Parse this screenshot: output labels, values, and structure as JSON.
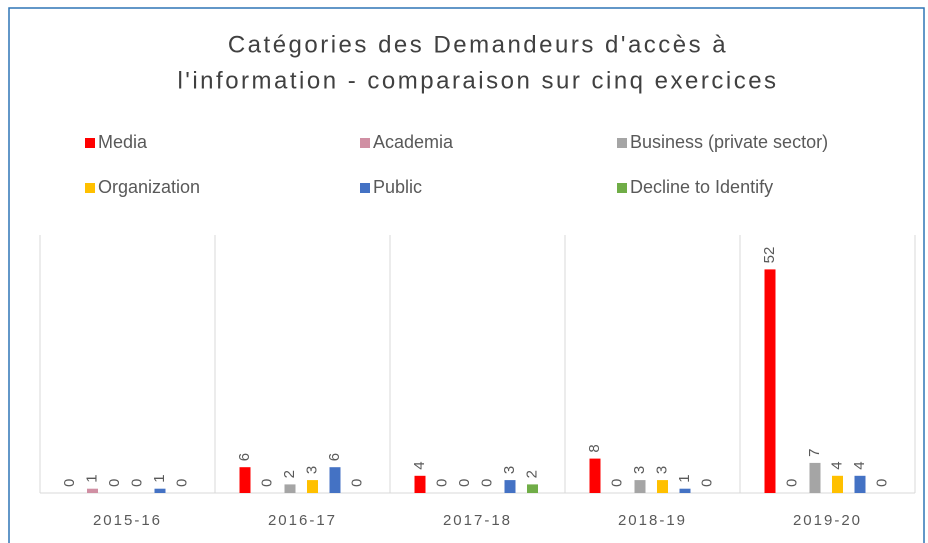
{
  "chart_data": {
    "type": "bar",
    "title": [
      "Catégories des Demandeurs d'accès à",
      "l'information - comparaison sur cinq exercices"
    ],
    "categories": [
      "2015-16",
      "2016-17",
      "2017-18",
      "2018-19",
      "2019-20"
    ],
    "series": [
      {
        "name": "Media",
        "color": "#ff0000",
        "values": [
          0,
          6,
          4,
          8,
          52
        ]
      },
      {
        "name": "Academia",
        "color": "#d08fa3",
        "values": [
          1,
          0,
          0,
          0,
          0
        ]
      },
      {
        "name": "Business (private sector)",
        "color": "#a5a5a5",
        "values": [
          0,
          2,
          0,
          3,
          7
        ]
      },
      {
        "name": "Organization",
        "color": "#ffc000",
        "values": [
          0,
          3,
          0,
          3,
          4
        ]
      },
      {
        "name": "Public",
        "color": "#4472c4",
        "values": [
          1,
          6,
          3,
          1,
          4
        ]
      },
      {
        "name": "Decline to Identify",
        "color": "#70ad47",
        "values": [
          0,
          0,
          2,
          0,
          0
        ]
      }
    ],
    "ylim": [
      0,
      60
    ]
  }
}
